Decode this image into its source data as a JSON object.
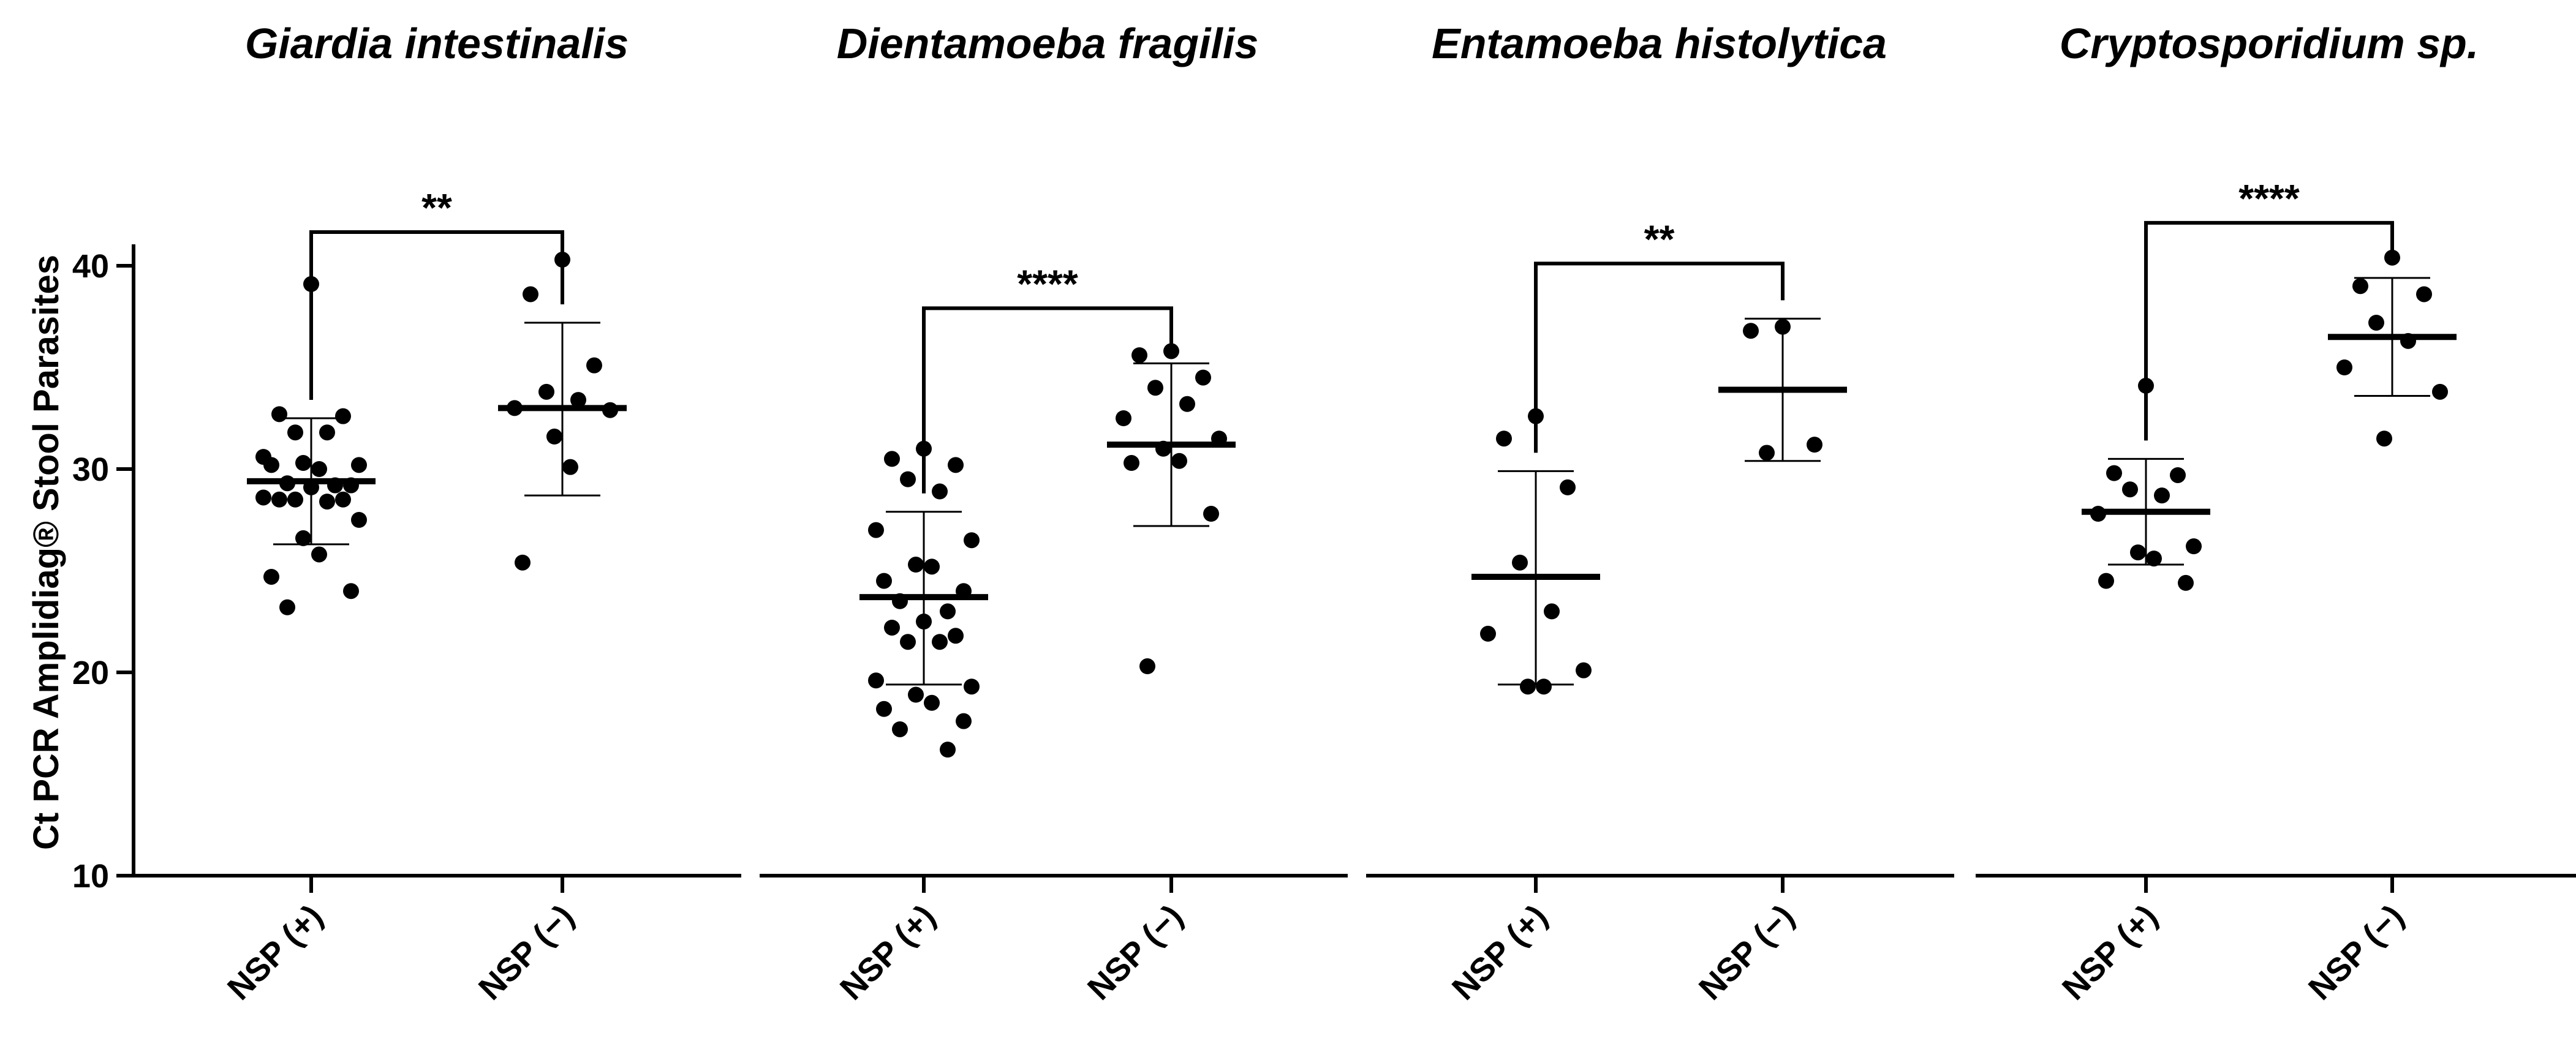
{
  "chart_data": {
    "type": "scatter",
    "ylabel": "Ct PCR Amplidiag® Stool Parasites",
    "ylim": [
      10,
      40
    ],
    "yticks": [
      "10",
      "20",
      "30",
      "40"
    ],
    "yticks_values": [
      10,
      20,
      30,
      40
    ],
    "categories": [
      "NSP (+)",
      "NSP (−)"
    ],
    "panels": [
      {
        "title": "Giardia intestinalis",
        "significance": "**",
        "groups": [
          {
            "name": "NSP (+)",
            "mean": 29.4,
            "sd_low": 26.3,
            "sd_high": 32.5,
            "points": [
              39.1,
              32.7,
              32.6,
              31.8,
              31.8,
              30.6,
              30.2,
              30.3,
              30.0,
              30.2,
              29.2,
              29.3,
              29.2,
              29.1,
              28.5,
              28.5,
              28.5,
              28.4,
              28.6,
              27.5,
              26.6,
              25.8,
              24.7,
              24.0,
              23.2
            ]
          },
          {
            "name": "NSP (−)",
            "mean": 33.0,
            "sd_low": 28.7,
            "sd_high": 37.2,
            "points": [
              40.3,
              38.6,
              35.1,
              33.8,
              33.4,
              33.0,
              32.9,
              31.6,
              30.1,
              25.4
            ]
          }
        ]
      },
      {
        "title": "Dientamoeba fragilis",
        "significance": "****",
        "groups": [
          {
            "name": "NSP (+)",
            "mean": 23.7,
            "sd_low": 19.4,
            "sd_high": 27.9,
            "points": [
              31.0,
              30.5,
              30.2,
              29.5,
              28.9,
              27.0,
              26.5,
              25.3,
              25.2,
              24.5,
              24.0,
              23.5,
              23.0,
              22.5,
              22.2,
              21.8,
              21.5,
              21.5,
              19.6,
              19.3,
              18.9,
              18.5,
              18.2,
              17.6,
              17.2,
              16.2
            ]
          },
          {
            "name": "NSP (−)",
            "mean": 31.2,
            "sd_low": 27.2,
            "sd_high": 35.2,
            "points": [
              35.8,
              35.6,
              34.5,
              34.0,
              33.2,
              32.5,
              31.5,
              31.0,
              30.4,
              30.3,
              27.8,
              20.3
            ]
          }
        ]
      },
      {
        "title": "Entamoeba histolytica",
        "significance": "**",
        "groups": [
          {
            "name": "NSP (+)",
            "mean": 24.7,
            "sd_low": 19.4,
            "sd_high": 29.9,
            "points": [
              32.6,
              31.5,
              29.1,
              25.4,
              23.0,
              21.9,
              20.1,
              19.3,
              19.3
            ]
          },
          {
            "name": "NSP (−)",
            "mean": 33.9,
            "sd_low": 30.4,
            "sd_high": 37.4,
            "points": [
              37.0,
              36.8,
              31.2,
              30.8
            ]
          }
        ]
      },
      {
        "title": "Cryptosporidium sp.",
        "significance": "****",
        "groups": [
          {
            "name": "NSP (+)",
            "mean": 27.9,
            "sd_low": 25.3,
            "sd_high": 30.5,
            "points": [
              34.1,
              29.8,
              29.7,
              29.0,
              28.7,
              27.8,
              26.2,
              25.9,
              25.6,
              24.5,
              24.4
            ]
          },
          {
            "name": "NSP (−)",
            "mean": 36.5,
            "sd_low": 33.6,
            "sd_high": 39.4,
            "points": [
              40.4,
              39.0,
              38.6,
              37.2,
              36.3,
              35.0,
              33.8,
              31.5
            ]
          }
        ]
      }
    ]
  }
}
